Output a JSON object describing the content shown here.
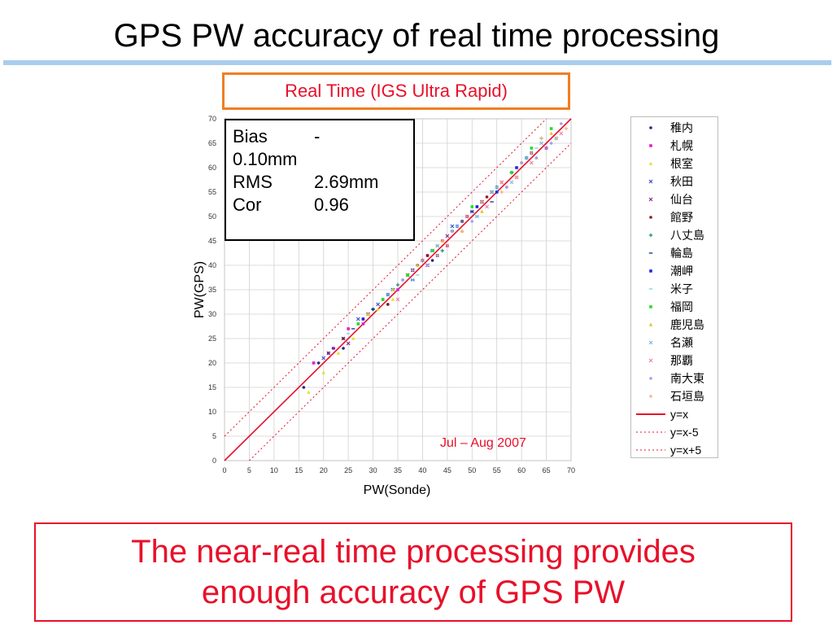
{
  "slide": {
    "title": "GPS PW accuracy of real time processing",
    "subtitle": "Real Time (IGS Ultra Rapid)",
    "conclusion_line1": "The near-real time processing provides",
    "conclusion_line2": "enough accuracy of GPS PW",
    "period": "Jul – Aug 2007"
  },
  "stats": {
    "bias_label": "Bias",
    "bias_value_line1": "-",
    "bias_value_line2": "0.10mm",
    "rms_label": "RMS",
    "rms_value": "2.69mm",
    "cor_label": "Cor",
    "cor_value": "0.96"
  },
  "colors": {
    "accent_red": "#e8102a",
    "orange_border": "#f07f22",
    "rule_blue": "#a9cdee"
  },
  "chart_data": {
    "type": "scatter",
    "xlabel": "PW(Sonde)",
    "ylabel": "PW(GPS)",
    "xlim": [
      0,
      70
    ],
    "ylim": [
      0,
      70
    ],
    "x_ticks": [
      0,
      5,
      10,
      15,
      20,
      25,
      30,
      35,
      40,
      45,
      50,
      55,
      60,
      65,
      70
    ],
    "y_ticks": [
      0,
      5,
      10,
      15,
      20,
      25,
      30,
      35,
      40,
      45,
      50,
      55,
      60,
      65,
      70
    ],
    "grid": true,
    "legend_position": "right",
    "series": [
      {
        "name": "稚内",
        "color": "#1f2a8a",
        "marker": "dot",
        "x": [
          16,
          19,
          21,
          24,
          27,
          30,
          33,
          36,
          39,
          42
        ],
        "y": [
          15,
          20,
          22,
          23,
          28,
          31,
          32,
          37,
          40,
          41
        ]
      },
      {
        "name": "札幌",
        "color": "#e020c8",
        "marker": "square",
        "x": [
          18,
          22,
          25,
          28,
          32,
          35,
          38,
          41,
          44,
          48
        ],
        "y": [
          20,
          23,
          27,
          28,
          33,
          35,
          39,
          42,
          45,
          49
        ]
      },
      {
        "name": "根室",
        "color": "#e8e020",
        "marker": "triangle",
        "x": [
          17,
          20,
          23,
          26,
          29,
          31,
          34,
          37,
          40,
          43
        ],
        "y": [
          14,
          18,
          22,
          25,
          30,
          31,
          33,
          38,
          41,
          44
        ]
      },
      {
        "name": "秋田",
        "color": "#3f4fd0",
        "marker": "x",
        "x": [
          20,
          24,
          27,
          31,
          34,
          38,
          42,
          46,
          50,
          54
        ],
        "y": [
          21,
          25,
          29,
          32,
          35,
          39,
          43,
          48,
          51,
          55
        ]
      },
      {
        "name": "仙台",
        "color": "#8a2a8a",
        "marker": "x",
        "x": [
          21,
          25,
          29,
          33,
          37,
          41,
          45,
          49,
          52,
          56
        ],
        "y": [
          22,
          24,
          30,
          34,
          38,
          40,
          46,
          50,
          53,
          57
        ]
      },
      {
        "name": "館野",
        "color": "#8a1a1a",
        "marker": "dot",
        "x": [
          24,
          28,
          33,
          37,
          41,
          45,
          49,
          53,
          57,
          60
        ],
        "y": [
          25,
          29,
          32,
          38,
          42,
          44,
          50,
          54,
          56,
          61
        ]
      },
      {
        "name": "八丈島",
        "color": "#1a8a7a",
        "marker": "plus",
        "x": [
          30,
          35,
          40,
          44,
          48,
          52,
          55,
          58,
          61,
          64
        ],
        "y": [
          31,
          36,
          41,
          43,
          49,
          53,
          56,
          59,
          62,
          66
        ]
      },
      {
        "name": "輪島",
        "color": "#1a3a9a",
        "marker": "dash",
        "x": [
          22,
          26,
          30,
          34,
          38,
          42,
          46,
          50,
          54,
          58
        ],
        "y": [
          23,
          27,
          31,
          35,
          37,
          43,
          47,
          51,
          53,
          59
        ]
      },
      {
        "name": "潮岬",
        "color": "#1a2ae0",
        "marker": "square",
        "x": [
          28,
          33,
          38,
          43,
          47,
          51,
          55,
          59,
          62,
          65
        ],
        "y": [
          29,
          34,
          39,
          42,
          48,
          52,
          55,
          60,
          63,
          64
        ]
      },
      {
        "name": "米子",
        "color": "#7ad8e8",
        "marker": "dash",
        "x": [
          25,
          29,
          34,
          39,
          43,
          47,
          51,
          55,
          59,
          63
        ],
        "y": [
          26,
          30,
          35,
          38,
          44,
          48,
          50,
          56,
          58,
          64
        ]
      },
      {
        "name": "福岡",
        "color": "#20e020",
        "marker": "square",
        "x": [
          27,
          32,
          37,
          42,
          46,
          50,
          54,
          58,
          62,
          66
        ],
        "y": [
          28,
          33,
          38,
          43,
          47,
          52,
          55,
          59,
          64,
          68
        ]
      },
      {
        "name": "鹿児島",
        "color": "#e8c020",
        "marker": "triangle",
        "x": [
          29,
          34,
          39,
          44,
          48,
          52,
          56,
          60,
          63,
          66
        ],
        "y": [
          30,
          35,
          40,
          45,
          47,
          51,
          57,
          61,
          62,
          67
        ]
      },
      {
        "name": "名瀬",
        "color": "#7ab8e8",
        "marker": "x",
        "x": [
          33,
          38,
          43,
          47,
          51,
          55,
          58,
          61,
          64,
          67
        ],
        "y": [
          34,
          37,
          44,
          48,
          50,
          56,
          57,
          62,
          65,
          66
        ]
      },
      {
        "name": "那覇",
        "color": "#f080b0",
        "marker": "x",
        "x": [
          35,
          40,
          45,
          49,
          53,
          56,
          59,
          62,
          65,
          68
        ],
        "y": [
          33,
          41,
          44,
          50,
          52,
          57,
          58,
          61,
          64,
          67
        ]
      },
      {
        "name": "南大東",
        "color": "#a0a0f0",
        "marker": "dot",
        "x": [
          36,
          41,
          46,
          50,
          54,
          57,
          60,
          63,
          66,
          68
        ],
        "y": [
          37,
          40,
          47,
          49,
          55,
          56,
          61,
          62,
          65,
          69
        ]
      },
      {
        "name": "石垣島",
        "color": "#f0b080",
        "marker": "plus",
        "x": [
          38,
          43,
          48,
          52,
          56,
          59,
          62,
          64,
          67,
          69
        ],
        "y": [
          39,
          42,
          47,
          53,
          55,
          58,
          63,
          66,
          66,
          68
        ]
      }
    ],
    "lines": [
      {
        "name": "y=x",
        "offset": 0,
        "style": "solid",
        "color": "#e8102a"
      },
      {
        "name": "y=x-5",
        "offset": -5,
        "style": "dotted",
        "color": "#e8102a"
      },
      {
        "name": "y=x+5",
        "offset": 5,
        "style": "dotted",
        "color": "#e8102a"
      }
    ]
  }
}
